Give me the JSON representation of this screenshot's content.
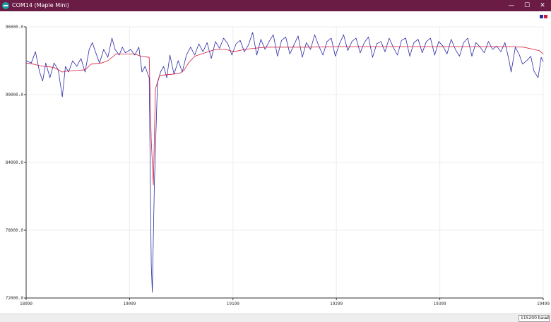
{
  "window": {
    "title": "COM14 (Maple Mini)",
    "minimize_glyph": "—",
    "maximize_glyph": "☐",
    "close_glyph": "✕",
    "icon": "arduino-icon"
  },
  "colors": {
    "titlebar": "#6b1c45",
    "series_1": "#2a2aa6",
    "series_2": "#d11a3a",
    "grid": "#ececec",
    "axis": "#333333"
  },
  "chart_data": {
    "type": "line",
    "xlim": [
      18999,
      19499
    ],
    "ylim": [
      72000,
      96000
    ],
    "x_ticks": [
      "18999",
      "19099",
      "19199",
      "19299",
      "19399",
      "19499"
    ],
    "y_ticks": [
      "96000.0",
      "90000.0",
      "84000.0",
      "78000.0",
      "72000.0"
    ],
    "legend": "top-right",
    "grid": true,
    "series": [
      {
        "color": "#2a2aa6",
        "points": [
          [
            18999,
            93000
          ],
          [
            19004,
            92800
          ],
          [
            19008,
            93800
          ],
          [
            19012,
            92000
          ],
          [
            19015,
            91200
          ],
          [
            19018,
            92800
          ],
          [
            19022,
            91500
          ],
          [
            19026,
            92800
          ],
          [
            19030,
            92200
          ],
          [
            19034,
            89800
          ],
          [
            19037,
            92500
          ],
          [
            19040,
            92000
          ],
          [
            19044,
            93000
          ],
          [
            19048,
            92500
          ],
          [
            19052,
            93200
          ],
          [
            19056,
            92000
          ],
          [
            19060,
            94000
          ],
          [
            19063,
            94600
          ],
          [
            19066,
            93800
          ],
          [
            19070,
            92800
          ],
          [
            19074,
            94000
          ],
          [
            19078,
            93300
          ],
          [
            19082,
            95000
          ],
          [
            19085,
            94000
          ],
          [
            19089,
            93500
          ],
          [
            19092,
            94200
          ],
          [
            19095,
            93700
          ],
          [
            19100,
            94000
          ],
          [
            19104,
            93500
          ],
          [
            19108,
            94200
          ],
          [
            19111,
            92000
          ],
          [
            19114,
            92500
          ],
          [
            19118,
            91500
          ],
          [
            19120,
            75000
          ],
          [
            19121,
            72500
          ],
          [
            19123,
            82000
          ],
          [
            19126,
            91000
          ],
          [
            19129,
            92000
          ],
          [
            19132,
            92500
          ],
          [
            19135,
            91500
          ],
          [
            19138,
            93500
          ],
          [
            19142,
            91800
          ],
          [
            19146,
            93000
          ],
          [
            19150,
            92000
          ],
          [
            19154,
            93500
          ],
          [
            19158,
            94200
          ],
          [
            19162,
            93500
          ],
          [
            19166,
            94500
          ],
          [
            19170,
            93800
          ],
          [
            19174,
            94600
          ],
          [
            19178,
            93200
          ],
          [
            19182,
            94700
          ],
          [
            19186,
            94100
          ],
          [
            19190,
            95000
          ],
          [
            19194,
            94500
          ],
          [
            19198,
            93500
          ],
          [
            19202,
            94500
          ],
          [
            19206,
            94800
          ],
          [
            19210,
            93800
          ],
          [
            19214,
            94400
          ],
          [
            19218,
            95500
          ],
          [
            19222,
            93500
          ],
          [
            19226,
            94900
          ],
          [
            19230,
            94000
          ],
          [
            19234,
            94700
          ],
          [
            19238,
            95300
          ],
          [
            19242,
            93400
          ],
          [
            19246,
            94800
          ],
          [
            19250,
            95100
          ],
          [
            19254,
            93600
          ],
          [
            19258,
            94400
          ],
          [
            19262,
            95200
          ],
          [
            19266,
            93300
          ],
          [
            19270,
            94600
          ],
          [
            19274,
            94000
          ],
          [
            19278,
            95300
          ],
          [
            19282,
            94300
          ],
          [
            19286,
            93500
          ],
          [
            19290,
            94700
          ],
          [
            19294,
            95000
          ],
          [
            19298,
            93400
          ],
          [
            19302,
            94500
          ],
          [
            19306,
            95300
          ],
          [
            19310,
            93900
          ],
          [
            19314,
            94700
          ],
          [
            19318,
            95000
          ],
          [
            19322,
            93700
          ],
          [
            19326,
            94600
          ],
          [
            19330,
            95100
          ],
          [
            19334,
            93300
          ],
          [
            19338,
            94500
          ],
          [
            19342,
            94700
          ],
          [
            19346,
            93800
          ],
          [
            19350,
            95000
          ],
          [
            19354,
            94200
          ],
          [
            19358,
            93500
          ],
          [
            19362,
            94800
          ],
          [
            19366,
            95000
          ],
          [
            19370,
            93400
          ],
          [
            19374,
            94600
          ],
          [
            19378,
            94900
          ],
          [
            19382,
            93700
          ],
          [
            19386,
            94700
          ],
          [
            19390,
            95000
          ],
          [
            19394,
            93500
          ],
          [
            19398,
            94700
          ],
          [
            19402,
            94300
          ],
          [
            19406,
            93600
          ],
          [
            19410,
            94900
          ],
          [
            19414,
            94000
          ],
          [
            19418,
            93400
          ],
          [
            19422,
            94600
          ],
          [
            19426,
            95000
          ],
          [
            19430,
            93400
          ],
          [
            19434,
            94600
          ],
          [
            19438,
            94200
          ],
          [
            19442,
            93700
          ],
          [
            19446,
            94700
          ],
          [
            19450,
            94000
          ],
          [
            19454,
            94300
          ],
          [
            19458,
            93800
          ],
          [
            19462,
            94600
          ],
          [
            19466,
            93000
          ],
          [
            19468,
            92000
          ],
          [
            19472,
            94200
          ],
          [
            19476,
            93500
          ],
          [
            19479,
            92700
          ],
          [
            19483,
            93000
          ],
          [
            19487,
            93400
          ],
          [
            19490,
            92100
          ],
          [
            19494,
            91500
          ],
          [
            19497,
            93300
          ],
          [
            19499,
            92900
          ]
        ]
      },
      {
        "color": "#d11a3a",
        "points": [
          [
            18999,
            92800
          ],
          [
            19006,
            92700
          ],
          [
            19010,
            92600
          ],
          [
            19016,
            92500
          ],
          [
            19022,
            92450
          ],
          [
            19026,
            92400
          ],
          [
            19034,
            92000
          ],
          [
            19040,
            92100
          ],
          [
            19050,
            92150
          ],
          [
            19056,
            92200
          ],
          [
            19062,
            92700
          ],
          [
            19072,
            92800
          ],
          [
            19078,
            93000
          ],
          [
            19086,
            93600
          ],
          [
            19094,
            93600
          ],
          [
            19104,
            93600
          ],
          [
            19110,
            93400
          ],
          [
            19118,
            93300
          ],
          [
            19120,
            86000
          ],
          [
            19122,
            82000
          ],
          [
            19124,
            90500
          ],
          [
            19128,
            91700
          ],
          [
            19140,
            91800
          ],
          [
            19148,
            91900
          ],
          [
            19152,
            92200
          ],
          [
            19156,
            92800
          ],
          [
            19162,
            93400
          ],
          [
            19172,
            93700
          ],
          [
            19182,
            94000
          ],
          [
            19192,
            94000
          ],
          [
            19200,
            93800
          ],
          [
            19210,
            94000
          ],
          [
            19220,
            94100
          ],
          [
            19230,
            94200
          ],
          [
            19240,
            94200
          ],
          [
            19250,
            94200
          ],
          [
            19270,
            94200
          ],
          [
            19300,
            94250
          ],
          [
            19340,
            94250
          ],
          [
            19380,
            94250
          ],
          [
            19420,
            94250
          ],
          [
            19450,
            94250
          ],
          [
            19470,
            94250
          ],
          [
            19480,
            94200
          ],
          [
            19490,
            94000
          ],
          [
            19495,
            93900
          ],
          [
            19499,
            93600
          ]
        ]
      }
    ]
  },
  "footer": {
    "baud_selected": "115200 baud",
    "dropdown_glyph": "⌄"
  }
}
